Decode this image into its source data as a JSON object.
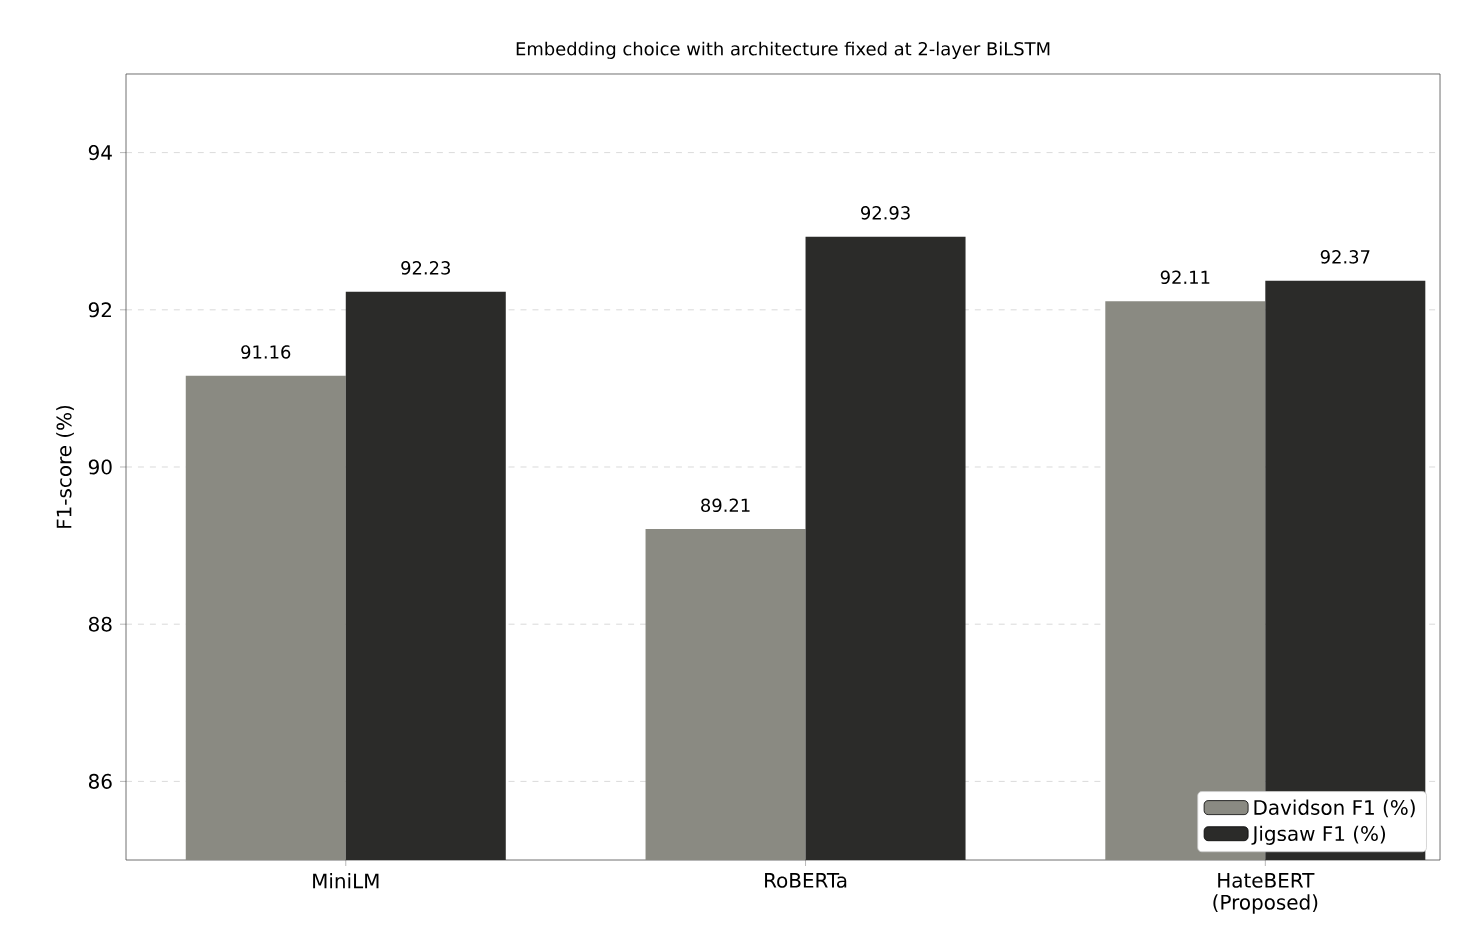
{
  "chart_data": {
    "type": "bar",
    "title": "Embedding choice with architecture fixed at 2-layer BiLSTM",
    "ylabel": "F1-score (%)",
    "categories": [
      "MiniLM",
      "RoBERTa",
      "HateBERT (Proposed)"
    ],
    "series": [
      {
        "name": "Davidson F1 (%)",
        "color": "#8a8a82",
        "values": [
          91.16,
          89.21,
          92.11
        ]
      },
      {
        "name": "Jigsaw F1 (%)",
        "color": "#2b2b29",
        "values": [
          92.23,
          92.93,
          92.37
        ]
      }
    ],
    "ylim": [
      85,
      95
    ],
    "yticks": [
      86,
      88,
      90,
      92,
      94
    ],
    "grid": "y",
    "legend": "bottom right",
    "data_labels": true
  }
}
